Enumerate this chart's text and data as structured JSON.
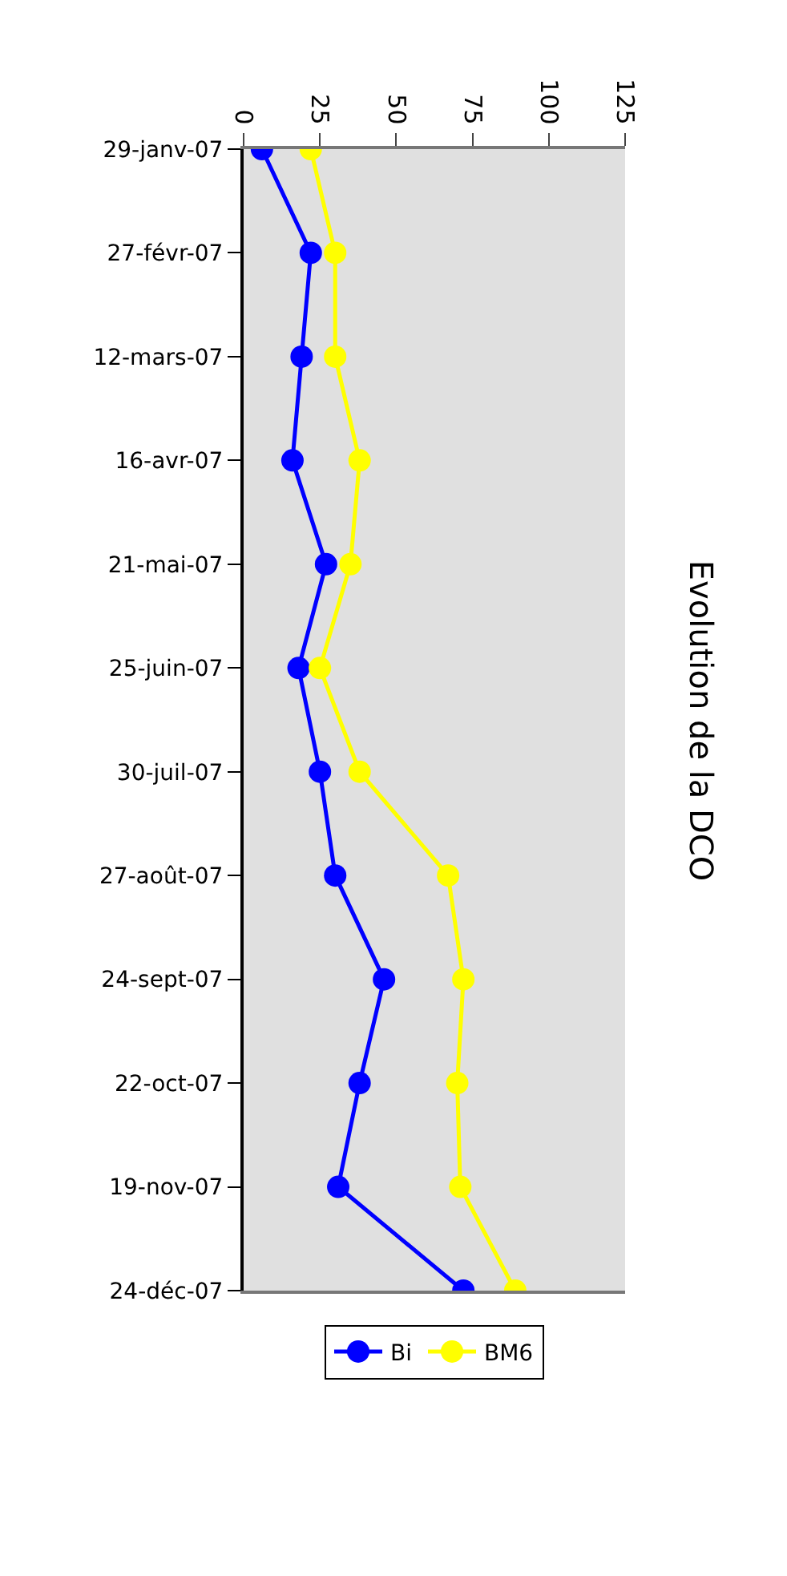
{
  "chart_data": {
    "type": "line",
    "orientation": "horizontal",
    "title": "Evolution de la DCO",
    "categories": [
      "29-janv-07",
      "27-févr-07",
      "12-mars-07",
      "16-avr-07",
      "21-mai-07",
      "25-juin-07",
      "30-juil-07",
      "27-août-07",
      "24-sept-07",
      "22-oct-07",
      "19-nov-07",
      "24-déc-07"
    ],
    "series": [
      {
        "name": "Bi",
        "color": "#0000ff",
        "values": [
          6,
          22,
          19,
          16,
          27,
          18,
          25,
          30,
          46,
          38,
          31,
          72
        ]
      },
      {
        "name": "BM6",
        "color": "#ffff00",
        "values": [
          22,
          30,
          30,
          38,
          35,
          25,
          38,
          67,
          72,
          70,
          71,
          89
        ]
      }
    ],
    "xlim": [
      0,
      125
    ],
    "xticks": [
      0,
      25,
      50,
      75,
      100,
      125
    ],
    "marker": "circle",
    "legend": "bottom",
    "grid": false
  }
}
